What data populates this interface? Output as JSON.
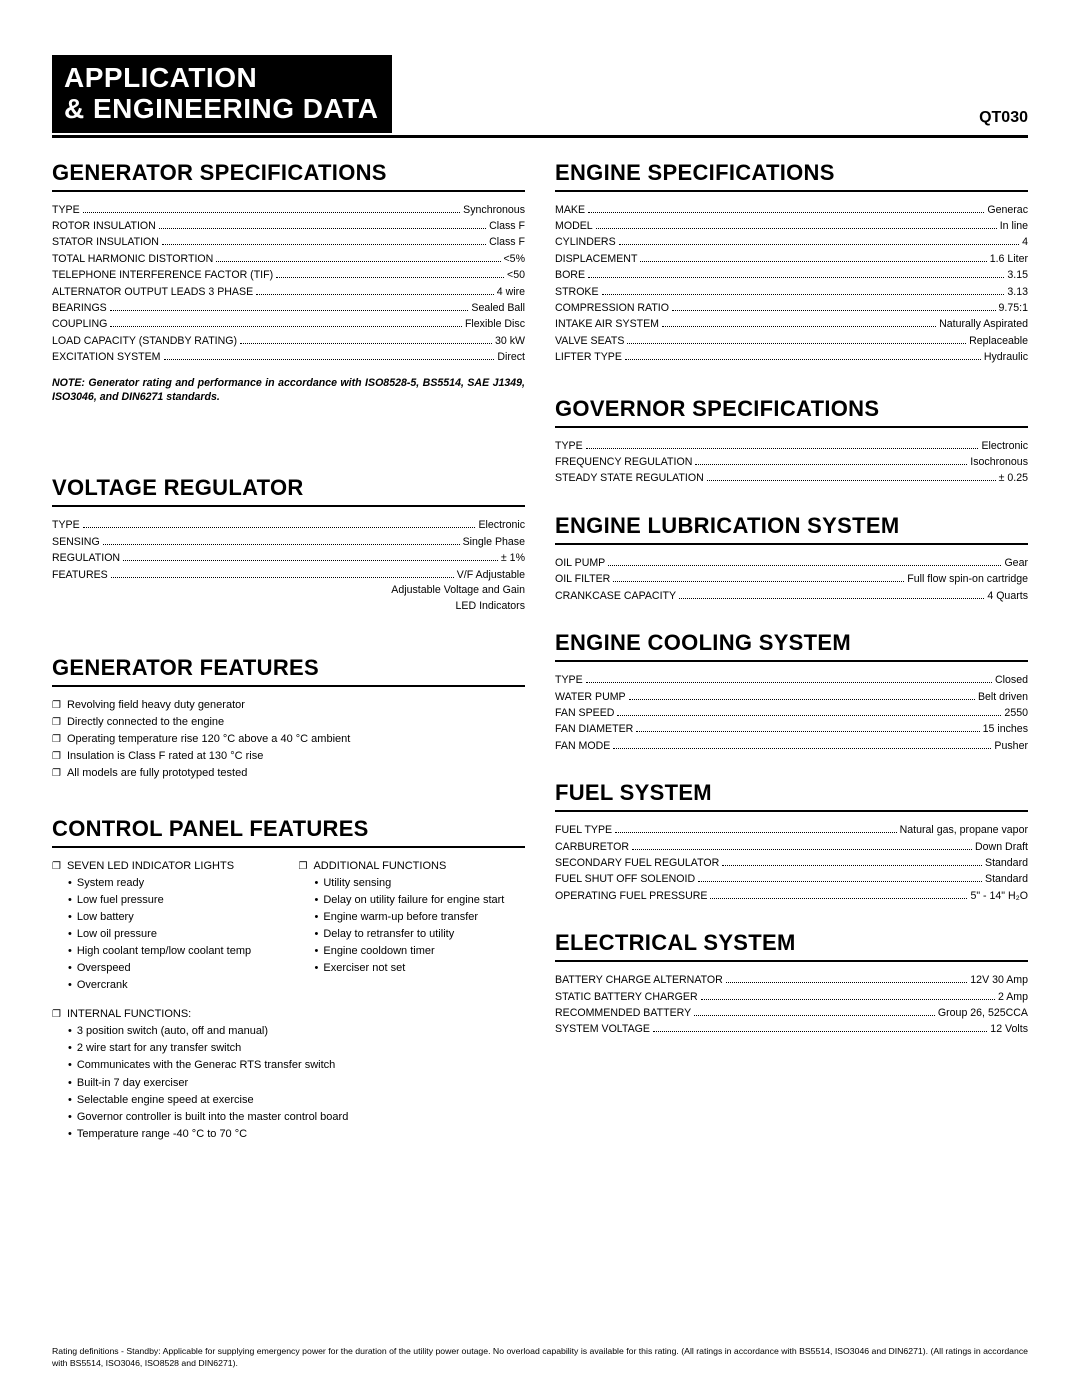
{
  "header": {
    "title_line1": "APPLICATION",
    "title_line2": "& ENGINEERING DATA",
    "model": "QT030"
  },
  "left": {
    "generator_specs": {
      "heading": "Generator Specifications",
      "rows": [
        {
          "label": "TYPE",
          "value": "Synchronous"
        },
        {
          "label": "ROTOR INSULATION",
          "value": "Class F"
        },
        {
          "label": "STATOR INSULATION",
          "value": "Class F"
        },
        {
          "label": "TOTAL HARMONIC DISTORTION",
          "value": "<5%"
        },
        {
          "label": "TELEPHONE INTERFERENCE FACTOR (TIF)",
          "value": "<50"
        },
        {
          "label": "ALTERNATOR OUTPUT LEADS 3 PHASE",
          "value": "4 wire"
        },
        {
          "label": "BEARINGS",
          "value": "Sealed Ball"
        },
        {
          "label": "COUPLING",
          "value": "Flexible Disc"
        },
        {
          "label": "LOAD CAPACITY (STANDBY RATING)",
          "value": "30 kW"
        },
        {
          "label": "EXCITATION SYSTEM",
          "value": "Direct"
        }
      ],
      "note": "NOTE:   Generator rating and performance in accordance with ISO8528-5, BS5514, SAE J1349, ISO3046, and DIN6271 standards."
    },
    "voltage_regulator": {
      "heading": "Voltage Regulator",
      "rows": [
        {
          "label": "TYPE",
          "value": "Electronic"
        },
        {
          "label": "SENSING",
          "value": "Single Phase"
        },
        {
          "label": "REGULATION",
          "value": "± 1%"
        },
        {
          "label": "FEATURES",
          "value": "V/F Adjustable"
        }
      ],
      "extras": [
        "Adjustable Voltage and Gain",
        "LED Indicators"
      ]
    },
    "generator_features": {
      "heading": "Generator Features",
      "items": [
        "Revolving field heavy duty generator",
        "Directly connected to the engine",
        "Operating temperature rise 120 °C above a 40 °C ambient",
        "Insulation is Class F rated at 130 °C rise",
        "All models are fully prototyped tested"
      ]
    },
    "control_panel": {
      "heading": "Control Panel Features",
      "col1_head": "SEVEN LED INDICATOR LIGHTS",
      "col1": [
        "System ready",
        "Low fuel pressure",
        "Low battery",
        "Low oil pressure",
        "High coolant temp/low coolant temp",
        "Overspeed",
        "Overcrank"
      ],
      "col2_head": "ADDITIONAL FUNCTIONS",
      "col2": [
        "Utility sensing",
        "Delay on utility failure for engine start",
        "Engine warm-up before transfer",
        "Delay to retransfer to utility",
        "Engine cooldown timer",
        "Exerciser not set"
      ],
      "internal_head": "INTERNAL FUNCTIONS:",
      "internal": [
        "3 position switch (auto, off and manual)",
        "2 wire start for any transfer switch",
        "Communicates with the Generac RTS transfer switch",
        "Built-in 7 day exerciser",
        "Selectable engine speed at exercise",
        "Governor controller is built into the master control board",
        "Temperature range -40 °C to 70 °C"
      ]
    }
  },
  "right": {
    "engine_specs": {
      "heading": "Engine Specifications",
      "rows": [
        {
          "label": "MAKE",
          "value": "Generac"
        },
        {
          "label": "MODEL",
          "value": "In line"
        },
        {
          "label": "CYLINDERS",
          "value": "4"
        },
        {
          "label": "DISPLACEMENT",
          "value": "1.6 Liter"
        },
        {
          "label": "BORE",
          "value": "3.15"
        },
        {
          "label": "STROKE",
          "value": "3.13"
        },
        {
          "label": "COMPRESSION RATIO",
          "value": "9.75:1"
        },
        {
          "label": "INTAKE AIR SYSTEM",
          "value": "Naturally Aspirated"
        },
        {
          "label": "VALVE SEATS",
          "value": "Replaceable"
        },
        {
          "label": "LIFTER TYPE",
          "value": "Hydraulic"
        }
      ]
    },
    "governor": {
      "heading": "Governor Specifications",
      "rows": [
        {
          "label": "TYPE",
          "value": "Electronic"
        },
        {
          "label": "FREQUENCY REGULATION",
          "value": "Isochronous"
        },
        {
          "label": "STEADY STATE REGULATION",
          "value": "± 0.25"
        }
      ]
    },
    "lubrication": {
      "heading": "Engine Lubrication System",
      "rows": [
        {
          "label": "OIL PUMP",
          "value": "Gear"
        },
        {
          "label": "OIL FILTER",
          "value": "Full flow spin-on cartridge"
        },
        {
          "label": "CRANKCASE CAPACITY",
          "value": "4 Quarts"
        }
      ]
    },
    "cooling": {
      "heading": "Engine Cooling System",
      "rows": [
        {
          "label": "TYPE",
          "value": "Closed"
        },
        {
          "label": "WATER PUMP",
          "value": "Belt driven"
        },
        {
          "label": "FAN SPEED",
          "value": "2550"
        },
        {
          "label": "FAN DIAMETER",
          "value": "15 inches"
        },
        {
          "label": "FAN MODE",
          "value": "Pusher"
        }
      ]
    },
    "fuel": {
      "heading": "Fuel System",
      "rows": [
        {
          "label": "FUEL TYPE",
          "value": "Natural gas, propane vapor"
        },
        {
          "label": "CARBURETOR",
          "value": "Down Draft"
        },
        {
          "label": "SECONDARY FUEL REGULATOR",
          "value": "Standard"
        },
        {
          "label": "FUEL SHUT OFF SOLENOID",
          "value": "Standard"
        },
        {
          "label": "OPERATING FUEL PRESSURE",
          "value": "5\" - 14\" H₂O"
        }
      ]
    },
    "electrical": {
      "heading": "Electrical System",
      "rows": [
        {
          "label": "BATTERY CHARGE ALTERNATOR",
          "value": "12V 30 Amp"
        },
        {
          "label": "STATIC BATTERY CHARGER",
          "value": "2 Amp"
        },
        {
          "label": "RECOMMENDED BATTERY",
          "value": "Group 26, 525CCA"
        },
        {
          "label": "SYSTEM VOLTAGE",
          "value": "12 Volts"
        }
      ]
    }
  },
  "footer": "Rating definitions - Standby: Applicable for supplying emergency power for the duration of the utility power outage. No overload capability is available for this rating. (All ratings in accordance with BS5514, ISO3046 and DIN6271). (All ratings in accordance with BS5514, ISO3046, ISO8528 and DIN6271)."
}
